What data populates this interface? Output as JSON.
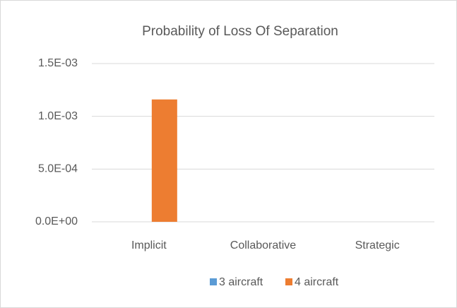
{
  "chart_data": {
    "type": "bar",
    "title": "Probability of Loss Of Separation",
    "categories": [
      "Implicit",
      "Collaborative",
      "Strategic"
    ],
    "series": [
      {
        "name": "3 aircraft",
        "color": "#5b9bd5",
        "values": [
          0,
          0,
          0
        ]
      },
      {
        "name": "4 aircraft",
        "color": "#ed7d31",
        "values": [
          0.00116,
          0,
          0
        ]
      }
    ],
    "ylim": [
      0,
      0.0015
    ],
    "yticks": [
      {
        "value": 0,
        "label": "0.0E+00"
      },
      {
        "value": 0.0005,
        "label": "5.0E-04"
      },
      {
        "value": 0.001,
        "label": "1.0E-03"
      },
      {
        "value": 0.0015,
        "label": "1.5E-03"
      }
    ],
    "grid": true,
    "legend": "bottom"
  }
}
